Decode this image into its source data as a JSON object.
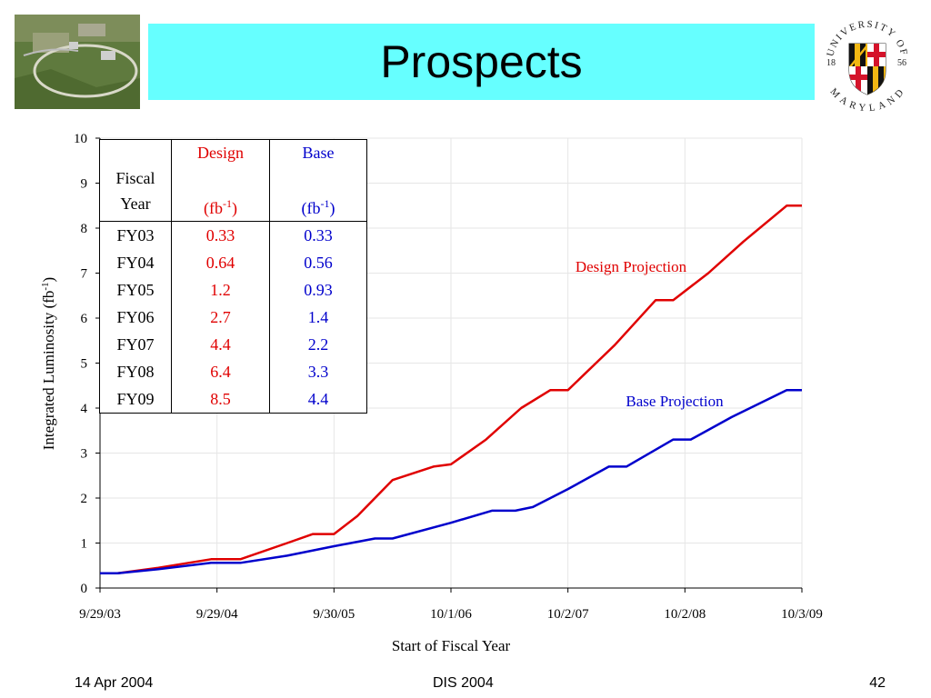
{
  "slide": {
    "title": "Prospects",
    "footer_left": "14 Apr 2004",
    "footer_center": "DIS 2004",
    "footer_right": "42"
  },
  "seal": {
    "top_text": "UNIVERSITY OF",
    "bottom_text": "MARYLAND",
    "year_left": "18",
    "year_right": "56"
  },
  "table": {
    "headers": {
      "col1": [
        "Fiscal",
        "Year"
      ],
      "col2_name": "Design",
      "col2_unit": "(fb-1)",
      "col3_name": "Base",
      "col3_unit": "(fb-1)"
    },
    "rows": [
      [
        "FY03",
        "0.33",
        "0.33"
      ],
      [
        "FY04",
        "0.64",
        "0.56"
      ],
      [
        "FY05",
        "1.2",
        "0.93"
      ],
      [
        "FY06",
        "2.7",
        "1.4"
      ],
      [
        "FY07",
        "4.4",
        "2.2"
      ],
      [
        "FY08",
        "6.4",
        "3.3"
      ],
      [
        "FY09",
        "8.5",
        "4.4"
      ]
    ]
  },
  "chart_data": {
    "type": "line",
    "xlabel": "Start of Fiscal Year",
    "ylabel": "Integrated Luminosity  (fb-1)",
    "xlim": [
      0,
      6
    ],
    "ylim": [
      0,
      10
    ],
    "yticks": [
      0,
      1,
      2,
      3,
      4,
      5,
      6,
      7,
      8,
      9,
      10
    ],
    "xtick_labels": [
      "9/29/03",
      "9/29/04",
      "9/30/05",
      "10/1/06",
      "10/2/07",
      "10/2/08",
      "10/3/09"
    ],
    "grid": true,
    "series": [
      {
        "name": "Design Projection",
        "color": "#e00000",
        "x": [
          0,
          0.15,
          0.5,
          0.95,
          1.2,
          1.6,
          1.82,
          2.0,
          2.2,
          2.5,
          2.85,
          3.0,
          3.3,
          3.6,
          3.85,
          4.0,
          4.4,
          4.75,
          4.9,
          5.2,
          5.5,
          5.87,
          6.0
        ],
        "values": [
          0.33,
          0.33,
          0.45,
          0.64,
          0.64,
          1.0,
          1.2,
          1.2,
          1.6,
          2.4,
          2.7,
          2.75,
          3.3,
          4.0,
          4.4,
          4.4,
          5.4,
          6.4,
          6.4,
          7.0,
          7.7,
          8.5,
          8.5
        ]
      },
      {
        "name": "Base Projection",
        "color": "#0000cc",
        "x": [
          0,
          0.15,
          0.5,
          0.95,
          1.2,
          1.6,
          2.0,
          2.35,
          2.5,
          3.0,
          3.35,
          3.55,
          3.7,
          4.0,
          4.35,
          4.5,
          4.9,
          5.05,
          5.4,
          5.87,
          6.0
        ],
        "values": [
          0.33,
          0.33,
          0.42,
          0.56,
          0.56,
          0.72,
          0.93,
          1.1,
          1.1,
          1.45,
          1.72,
          1.72,
          1.8,
          2.2,
          2.7,
          2.7,
          3.3,
          3.3,
          3.8,
          4.4,
          4.4
        ]
      }
    ]
  }
}
